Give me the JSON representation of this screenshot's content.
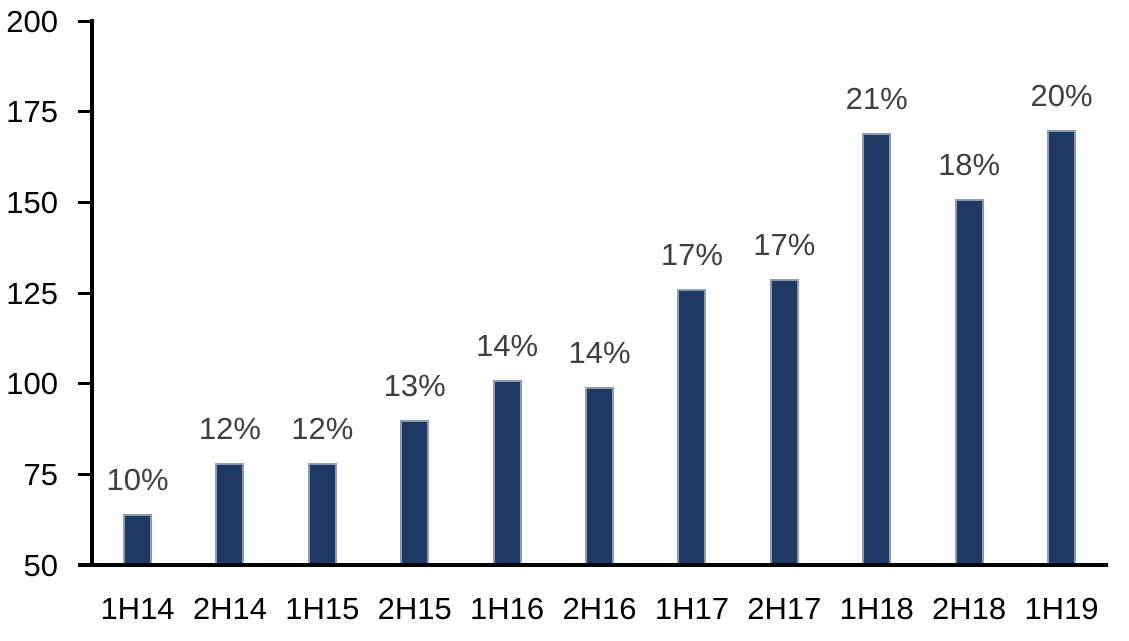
{
  "chart_data": {
    "type": "bar",
    "title": "",
    "xlabel": "",
    "ylabel": "",
    "categories": [
      "1H14",
      "2H14",
      "1H15",
      "2H15",
      "1H16",
      "2H16",
      "1H17",
      "2H17",
      "1H18",
      "2H18",
      "1H19"
    ],
    "values": [
      64,
      78,
      78,
      90,
      101,
      99,
      126,
      129,
      169,
      151,
      170
    ],
    "data_labels": [
      "10%",
      "12%",
      "12%",
      "13%",
      "14%",
      "14%",
      "17%",
      "17%",
      "21%",
      "18%",
      "20%"
    ],
    "y_ticks": [
      50,
      75,
      100,
      125,
      150,
      175,
      200
    ],
    "ylim": [
      50,
      200
    ],
    "grid": false,
    "legend_position": "none",
    "colors": {
      "bar_fill": "#1f3864",
      "bar_border": "#8d9ab0",
      "data_label": "#3f3f3f",
      "axis_line": "#000000",
      "tick_label": "#000000",
      "background": "#ffffff"
    }
  }
}
